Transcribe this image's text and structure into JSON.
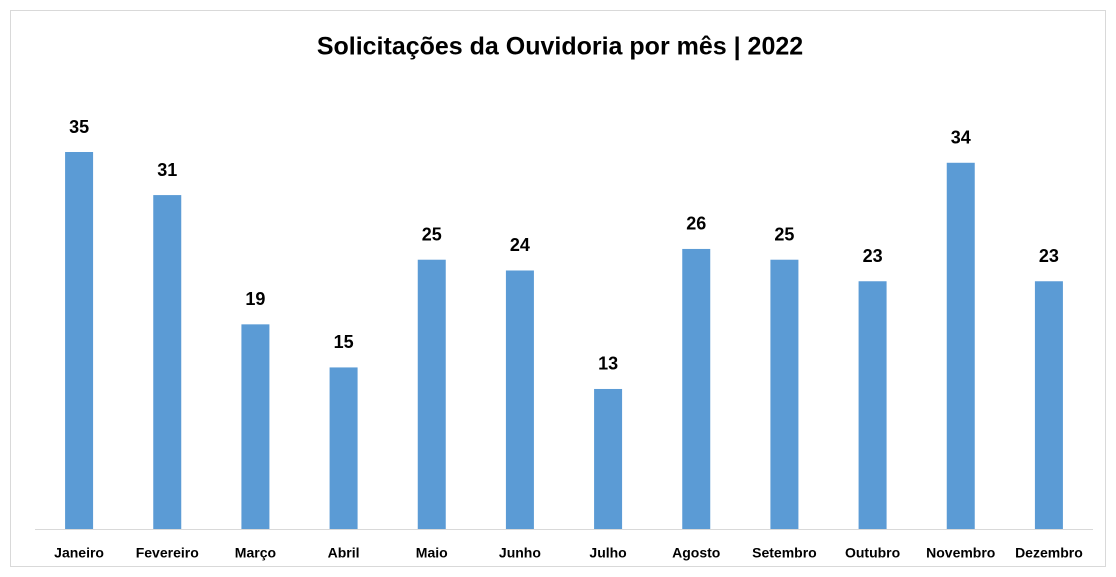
{
  "chart_data": {
    "type": "bar",
    "title": "Solicitações da Ouvidoria por mês | 2022",
    "categories": [
      "Janeiro",
      "Fevereiro",
      "Março",
      "Abril",
      "Maio",
      "Junho",
      "Julho",
      "Agosto",
      "Setembro",
      "Outubro",
      "Novembro",
      "Dezembro"
    ],
    "values": [
      35,
      31,
      19,
      15,
      25,
      24,
      13,
      26,
      25,
      23,
      34,
      23
    ],
    "color": "#5b9bd5",
    "ylim": [
      0,
      35
    ],
    "grid": false
  }
}
